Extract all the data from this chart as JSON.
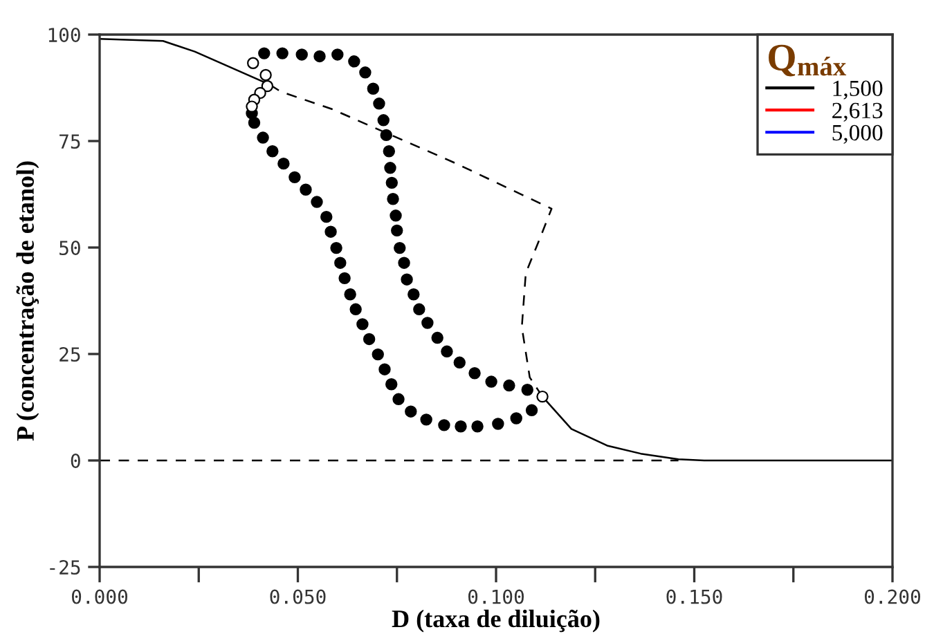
{
  "chart_data": {
    "type": "line",
    "xlabel": "D (taxa de diluição)",
    "ylabel": "P (concentração de etanol)",
    "legend_title": "Q$_{máx}$",
    "xlim": [
      0,
      0.2
    ],
    "ylim": [
      -25,
      100
    ],
    "xticks": [
      {
        "value": 0,
        "label": "0.000"
      },
      {
        "value": 0.025,
        "label": null
      },
      {
        "value": 0.05,
        "label": "0.050"
      },
      {
        "value": 0.075,
        "label": null
      },
      {
        "value": 0.1,
        "label": "0.100"
      },
      {
        "value": 0.125,
        "label": null
      },
      {
        "value": 0.15,
        "label": "0.150"
      },
      {
        "value": 0.175,
        "label": null
      },
      {
        "value": 0.2,
        "label": "0.200"
      }
    ],
    "yticks": [
      -25,
      0,
      25,
      50,
      75,
      100
    ],
    "grid": false,
    "legend": "top right",
    "series": [
      {
        "name": "1,500",
        "color": "#000000",
        "line_style": "solid",
        "marker": "none",
        "x": [
          0,
          0.016,
          0.024,
          0.043,
          0.08,
          0.1117,
          0.119,
          0.128,
          0.1365,
          0.146,
          0.1525,
          0.2
        ],
        "values": [
          99,
          98.5,
          96,
          88.2,
          null,
          15,
          7.4,
          3.5,
          1.6,
          0.3,
          0,
          0
        ]
      },
      {
        "name": "2,613",
        "color": "#ff0000",
        "line_style": "solid",
        "marker": "none"
      },
      {
        "name": "5,000",
        "color": "#0000ff",
        "line_style": "solid",
        "marker": "none"
      },
      {
        "color": "#000000",
        "line_style": "dashed",
        "marker": "none",
        "x": [
          0.043,
          0.0457,
          0.0586,
          0.09,
          0.114,
          0.111,
          0.1075,
          0.1065,
          0.1085,
          0.1117
        ],
        "values": [
          88.2,
          86.6,
          82.5,
          69.7,
          59.1,
          52,
          44,
          31.3,
          19.5,
          15
        ]
      },
      {
        "color": "#000000",
        "line_style": "dashed",
        "marker": "none",
        "x": [
          0,
          0.146
        ],
        "values": [
          0,
          0
        ]
      },
      {
        "color": "#000000",
        "type": "scatter",
        "marker": "circle",
        "x": [
          0.0415,
          0.0461,
          0.051,
          0.0555,
          0.06,
          0.0642,
          0.067,
          0.069,
          0.0705,
          0.0716,
          0.0723,
          0.073,
          0.0733,
          0.0737,
          0.074,
          0.0747,
          0.075,
          0.0757,
          0.0768,
          0.0775,
          0.0792,
          0.0806,
          0.0827,
          0.0852,
          0.0876,
          0.0908,
          0.0946,
          0.0988,
          0.1033,
          0.1079,
          0.0384,
          0.039,
          0.0412,
          0.0436,
          0.0464,
          0.0492,
          0.052,
          0.0548,
          0.0572,
          0.0583,
          0.0597,
          0.0607,
          0.0618,
          0.0632,
          0.0646,
          0.0663,
          0.068,
          0.0702,
          0.0719,
          0.0736,
          0.0754,
          0.0785,
          0.0824,
          0.0869,
          0.0911,
          0.0953,
          0.1005,
          0.1051,
          0.109
        ],
        "values": [
          95.6,
          95.6,
          95.3,
          94.9,
          95.3,
          93.7,
          91.1,
          87.3,
          83.8,
          79.9,
          76.4,
          72.6,
          68.7,
          65.2,
          61.4,
          57.5,
          54,
          49.9,
          46.4,
          42.5,
          39,
          35.5,
          32.3,
          28.8,
          25.6,
          23,
          20.5,
          18.5,
          17.6,
          16.6,
          81.5,
          79.3,
          75.8,
          72.6,
          69.7,
          66.5,
          63.6,
          60.7,
          57.2,
          53.7,
          49.9,
          46.4,
          42.8,
          39,
          35.5,
          32,
          28.5,
          24.9,
          21.4,
          17.9,
          14.4,
          11.5,
          9.6,
          8.3,
          8,
          8,
          8.6,
          9.9,
          11.8
        ]
      },
      {
        "color": "#ffffff",
        "type": "scatter",
        "marker": "circle",
        "x": [
          0.0387,
          0.0419,
          0.0423,
          0.0405,
          0.039,
          0.0384,
          0.1117
        ],
        "values": [
          93.3,
          90.5,
          87.9,
          86.3,
          84.7,
          83.1,
          15
        ]
      }
    ]
  }
}
